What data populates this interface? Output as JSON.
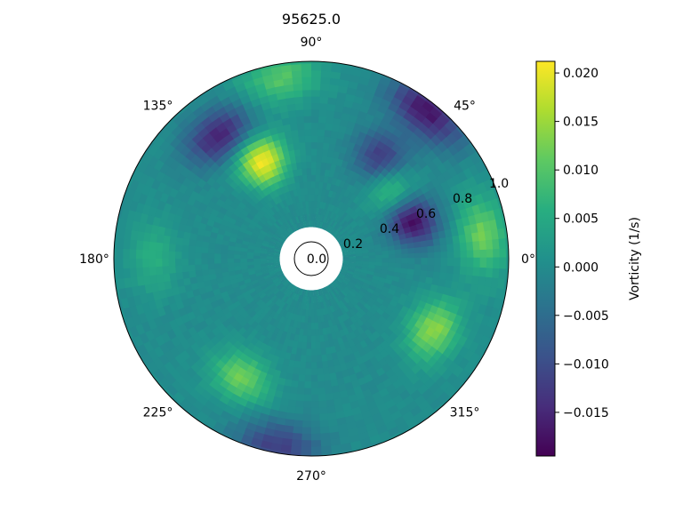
{
  "chart_data": {
    "type": "heatmap",
    "projection": "polar",
    "title": "95625.0",
    "theta_tick_labels": [
      "0°",
      "45°",
      "90°",
      "135°",
      "180°",
      "225°",
      "270°",
      "315°"
    ],
    "theta_ticks_deg": [
      0,
      45,
      90,
      135,
      180,
      225,
      270,
      315
    ],
    "r_tick_labels": [
      "0.0",
      "0.2",
      "0.4",
      "0.6",
      "0.8",
      "1.0"
    ],
    "r_ticks": [
      0.0,
      0.2,
      0.4,
      0.6,
      0.8,
      1.0
    ],
    "r_range": [
      0,
      1.0
    ],
    "r_data_inner": 0.16,
    "grid": false,
    "colormap": "viridis",
    "colorbar": {
      "label": "Vorticity (1/s)",
      "range": [
        -0.0195,
        0.0212
      ],
      "tick_values": [
        0.02,
        0.015,
        0.01,
        0.005,
        0.0,
        -0.005,
        -0.01,
        -0.015
      ],
      "tick_labels": [
        "0.020",
        "0.015",
        "0.010",
        "0.005",
        "0.000",
        "−0.005",
        "−0.010",
        "−0.015"
      ],
      "placement": "right"
    },
    "features": [
      {
        "theta_deg": 117,
        "r": 0.55,
        "value": 0.021
      },
      {
        "theta_deg": 100,
        "r": 0.93,
        "value": 0.01
      },
      {
        "theta_deg": 127,
        "r": 0.78,
        "value": -0.016
      },
      {
        "theta_deg": 55,
        "r": 0.62,
        "value": -0.014
      },
      {
        "theta_deg": 52,
        "r": 0.95,
        "value": -0.017
      },
      {
        "theta_deg": 42,
        "r": 0.55,
        "value": 0.01
      },
      {
        "theta_deg": 20,
        "r": 0.55,
        "value": -0.018
      },
      {
        "theta_deg": 8,
        "r": 0.88,
        "value": 0.012
      },
      {
        "theta_deg": 330,
        "r": 0.72,
        "value": 0.014
      },
      {
        "theta_deg": 240,
        "r": 0.7,
        "value": 0.012
      },
      {
        "theta_deg": 260,
        "r": 0.97,
        "value": -0.012
      },
      {
        "theta_deg": 180,
        "r": 0.8,
        "value": 0.006
      }
    ]
  }
}
